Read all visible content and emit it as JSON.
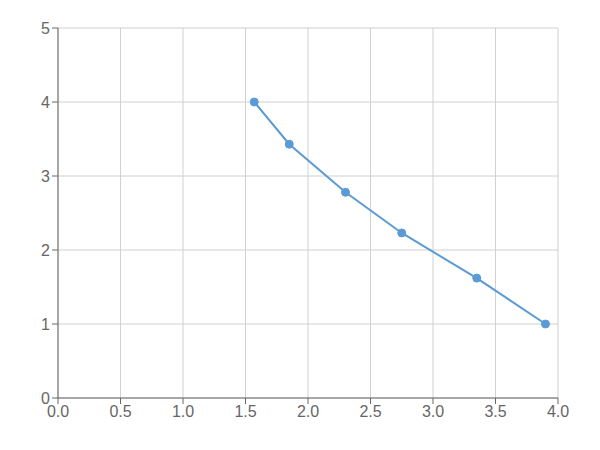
{
  "chart_data": {
    "type": "line",
    "x": [
      1.57,
      1.85,
      2.3,
      2.75,
      3.35,
      3.9
    ],
    "values": [
      4.0,
      3.43,
      2.78,
      2.23,
      1.62,
      1.0
    ],
    "color": "#5b9bd5",
    "marker": "circle",
    "xlim": [
      0.0,
      4.0
    ],
    "ylim": [
      0,
      5
    ],
    "xticks": [
      {
        "value": 0.0,
        "label": "0.0"
      },
      0.5,
      {
        "value": 1.0,
        "label": "1.0"
      },
      1.5,
      {
        "value": 2.0,
        "label": "2.0"
      },
      2.5,
      {
        "value": 3.0,
        "label": "3.0"
      },
      3.5,
      {
        "value": 4.0,
        "label": "4.0"
      }
    ],
    "yticks": [
      0,
      1,
      2,
      3,
      4,
      5
    ],
    "grid": true
  }
}
